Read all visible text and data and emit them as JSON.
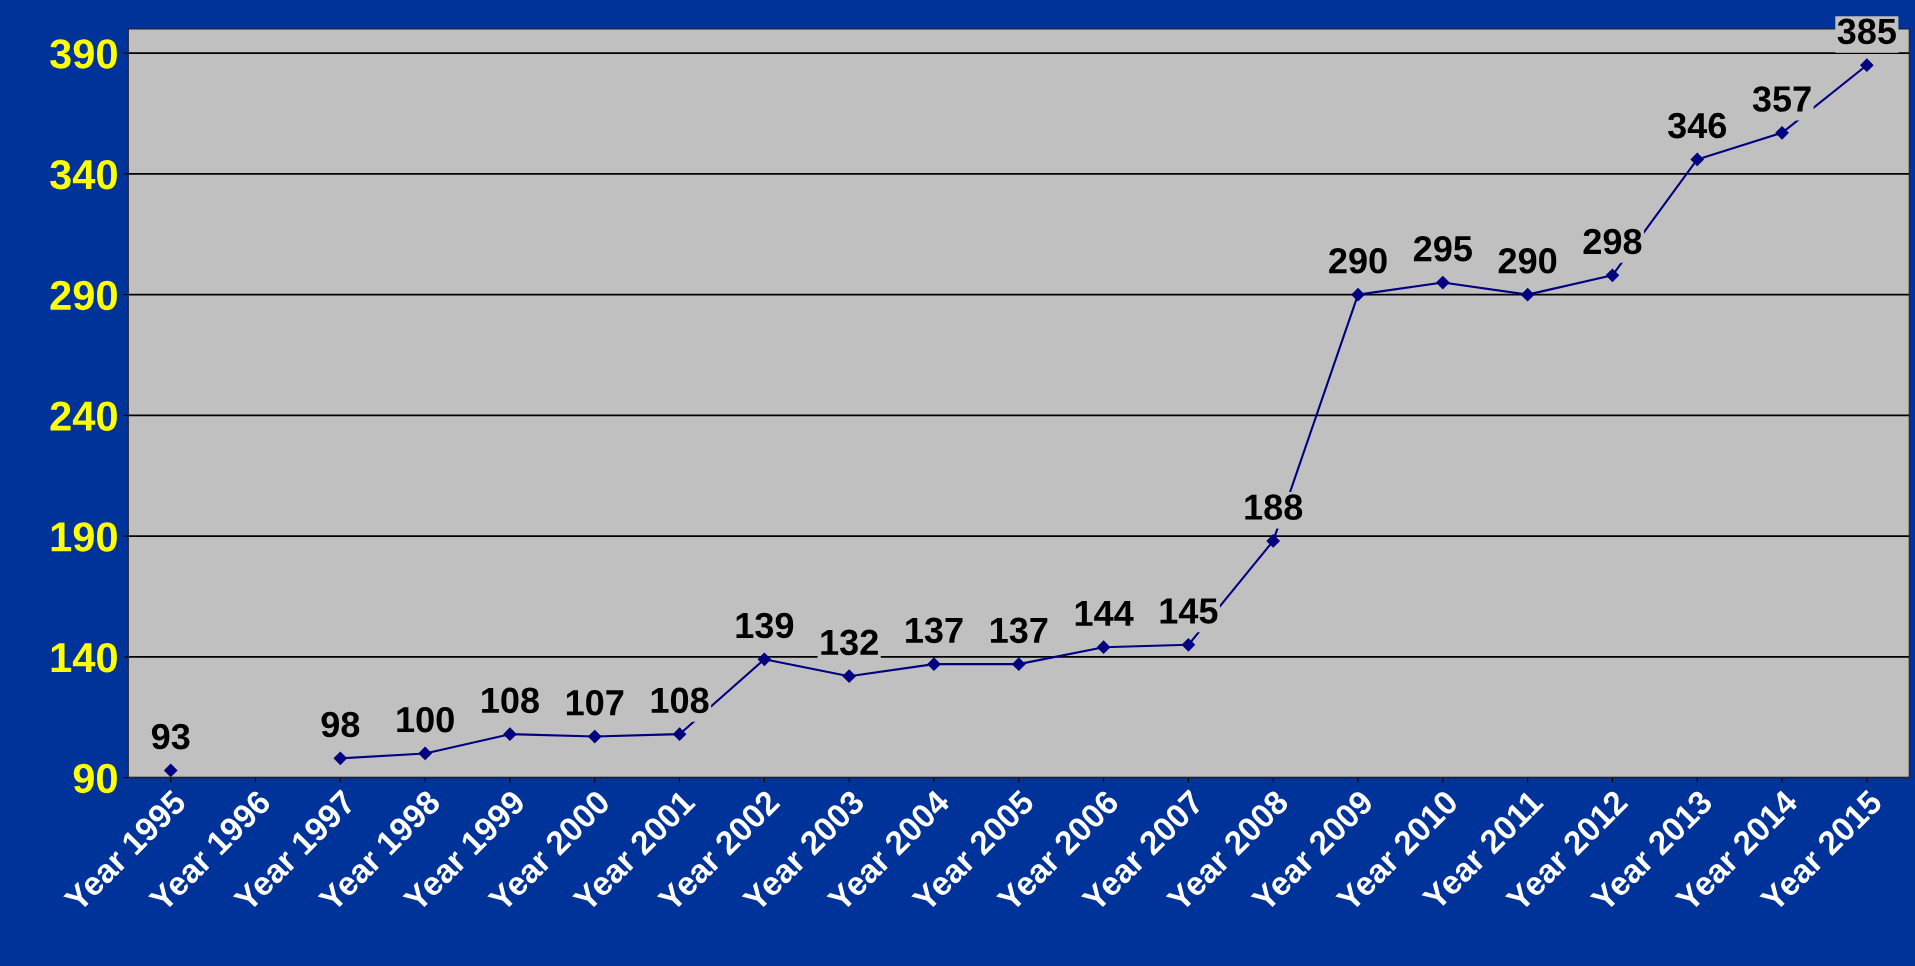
{
  "chart_data": {
    "type": "line",
    "categories": [
      "Year 1995",
      "Year 1996",
      "Year 1997",
      "Year 1998",
      "Year 1999",
      "Year 2000",
      "Year 2001",
      "Year 2002",
      "Year 2003",
      "Year 2004",
      "Year 2005",
      "Year 2006",
      "Year 2007",
      "Year 2008",
      "Year 2009",
      "Year 2010",
      "Year 2011",
      "Year 2012",
      "Year 2013",
      "Year 2014",
      "Year 2015"
    ],
    "series": [
      {
        "color": "#000080",
        "values": [
          93,
          null,
          98,
          100,
          108,
          107,
          108,
          139,
          132,
          137,
          137,
          144,
          145,
          188,
          290,
          295,
          290,
          298,
          346,
          357,
          385
        ],
        "value_labels": [
          "93",
          null,
          "98",
          "100",
          "108",
          "107",
          "108",
          "139",
          "132",
          "137",
          "137",
          "144",
          "145",
          "188",
          "290",
          "295",
          "290",
          "298",
          "346",
          "357",
          "385"
        ]
      }
    ],
    "ylim": [
      90,
      400
    ],
    "yticks": [
      90,
      140,
      190,
      240,
      290,
      340,
      390
    ],
    "grid": "y",
    "marker": "diamond",
    "line_style": "solid"
  }
}
